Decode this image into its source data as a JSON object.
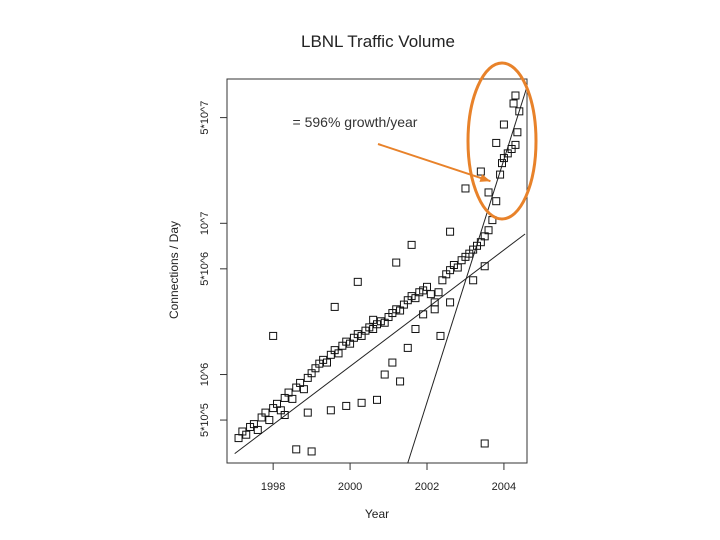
{
  "chart_data": {
    "type": "scatter",
    "title": "LBNL Traffic Volume",
    "xlabel": "Year",
    "ylabel": "Connections / Day",
    "x_scale": "linear",
    "y_scale": "log",
    "xlim": [
      1996.8,
      2004.6
    ],
    "ylim": [
      260000,
      90000000
    ],
    "x_ticks": [
      {
        "value": 1998,
        "label": "1998"
      },
      {
        "value": 2000,
        "label": "2000"
      },
      {
        "value": 2002,
        "label": "2002"
      },
      {
        "value": 2004,
        "label": "2004"
      }
    ],
    "y_ticks": [
      {
        "value": 500000,
        "label": "5*10^5"
      },
      {
        "value": 1000000,
        "label": "10^6"
      },
      {
        "value": 5000000,
        "label": "5*10^6"
      },
      {
        "value": 10000000,
        "label": "10^7"
      },
      {
        "value": 50000000,
        "label": "5*10^7"
      }
    ],
    "series": [
      {
        "name": "daily connections",
        "marker": "open-square",
        "points": [
          [
            1997.1,
            380000
          ],
          [
            1997.2,
            420000
          ],
          [
            1997.3,
            400000
          ],
          [
            1997.4,
            450000
          ],
          [
            1997.5,
            470000
          ],
          [
            1997.6,
            430000
          ],
          [
            1997.7,
            520000
          ],
          [
            1997.8,
            560000
          ],
          [
            1997.9,
            500000
          ],
          [
            1998.0,
            600000
          ],
          [
            1998.1,
            640000
          ],
          [
            1998.2,
            580000
          ],
          [
            1998.3,
            700000
          ],
          [
            1998.4,
            760000
          ],
          [
            1998.5,
            690000
          ],
          [
            1998.6,
            820000
          ],
          [
            1998.7,
            880000
          ],
          [
            1998.8,
            800000
          ],
          [
            1998.9,
            950000
          ],
          [
            1999.0,
            1020000
          ],
          [
            1999.1,
            1100000
          ],
          [
            1999.2,
            1180000
          ],
          [
            1999.3,
            1250000
          ],
          [
            1999.4,
            1200000
          ],
          [
            1999.5,
            1350000
          ],
          [
            1999.6,
            1450000
          ],
          [
            1999.7,
            1380000
          ],
          [
            1999.8,
            1550000
          ],
          [
            1999.9,
            1650000
          ],
          [
            2000.0,
            1600000
          ],
          [
            2000.1,
            1750000
          ],
          [
            2000.2,
            1850000
          ],
          [
            2000.3,
            1800000
          ],
          [
            2000.4,
            1950000
          ],
          [
            2000.5,
            2050000
          ],
          [
            2000.6,
            2000000
          ],
          [
            2000.7,
            2150000
          ],
          [
            2000.8,
            2250000
          ],
          [
            2000.9,
            2200000
          ],
          [
            2001.0,
            2400000
          ],
          [
            2001.1,
            2550000
          ],
          [
            2001.2,
            2700000
          ],
          [
            2001.3,
            2650000
          ],
          [
            2001.4,
            2900000
          ],
          [
            2001.5,
            3100000
          ],
          [
            2001.6,
            3300000
          ],
          [
            2001.7,
            3200000
          ],
          [
            2001.8,
            3500000
          ],
          [
            2001.9,
            3600000
          ],
          [
            2002.0,
            3800000
          ],
          [
            2002.1,
            3400000
          ],
          [
            2002.2,
            3000000
          ],
          [
            2002.3,
            3500000
          ],
          [
            2002.4,
            4200000
          ],
          [
            2002.5,
            4600000
          ],
          [
            2002.6,
            4900000
          ],
          [
            2002.7,
            5300000
          ],
          [
            2002.8,
            5100000
          ],
          [
            2002.9,
            5700000
          ],
          [
            2003.0,
            6000000
          ],
          [
            2003.1,
            6300000
          ],
          [
            2003.2,
            6700000
          ],
          [
            2003.3,
            7100000
          ],
          [
            2003.4,
            7500000
          ],
          [
            2003.5,
            8200000
          ],
          [
            2003.6,
            9000000
          ],
          [
            2003.7,
            10500000
          ],
          [
            2003.8,
            14000000
          ],
          [
            2003.9,
            21000000
          ],
          [
            2003.95,
            25000000
          ],
          [
            2004.0,
            27000000
          ],
          [
            2004.1,
            29000000
          ],
          [
            2004.2,
            31000000
          ],
          [
            2004.3,
            33000000
          ],
          [
            2004.35,
            40000000
          ],
          [
            2004.4,
            55000000
          ],
          [
            1998.3,
            540000
          ],
          [
            1998.9,
            560000
          ],
          [
            1999.5,
            580000
          ],
          [
            1999.9,
            620000
          ],
          [
            2000.3,
            650000
          ],
          [
            2000.7,
            680000
          ],
          [
            2000.9,
            1000000
          ],
          [
            2001.1,
            1200000
          ],
          [
            2001.3,
            900000
          ],
          [
            2001.5,
            1500000
          ],
          [
            2001.7,
            2000000
          ],
          [
            2001.9,
            2500000
          ],
          [
            2002.2,
            2700000
          ],
          [
            2002.35,
            1800000
          ],
          [
            2002.6,
            3000000
          ],
          [
            2003.2,
            4200000
          ],
          [
            2003.5,
            5200000
          ],
          [
            1998.0,
            1800000
          ],
          [
            1999.6,
            2800000
          ],
          [
            2000.2,
            4100000
          ],
          [
            2000.6,
            2300000
          ],
          [
            2001.2,
            5500000
          ],
          [
            2001.6,
            7200000
          ],
          [
            2002.6,
            8800000
          ],
          [
            2003.0,
            17000000
          ],
          [
            2003.4,
            22000000
          ],
          [
            2003.6,
            16000000
          ],
          [
            2003.8,
            34000000
          ],
          [
            2004.0,
            45000000
          ],
          [
            2004.25,
            62000000
          ],
          [
            2004.3,
            70000000
          ],
          [
            2003.5,
            350000
          ],
          [
            1998.6,
            320000
          ],
          [
            1999.0,
            310000
          ]
        ]
      }
    ],
    "reference_lines": [
      {
        "name": "baseline-trend",
        "from": [
          1997.0,
          300000
        ],
        "to": [
          2004.55,
          8500000
        ]
      },
      {
        "name": "steep-growth-trend",
        "from": [
          2001.5,
          260000
        ],
        "to": [
          2004.6,
          80000000
        ]
      }
    ],
    "annotations": [
      {
        "text": "= 596% growth/year",
        "target": [
          2003.65,
          19000000
        ]
      }
    ],
    "highlight": {
      "shape": "ellipse",
      "color": "#e8822a",
      "center": [
        2003.95,
        35000000
      ]
    }
  }
}
